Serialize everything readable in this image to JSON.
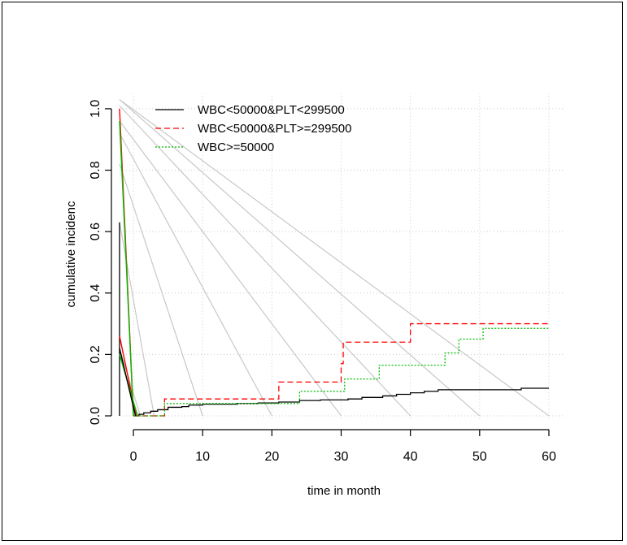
{
  "chart_data": {
    "type": "line",
    "title": "",
    "xlabel": "time in month",
    "ylabel": "cumulative incidenc",
    "xlim": [
      -2,
      62
    ],
    "ylim": [
      0,
      1.05
    ],
    "x_ticks": [
      0,
      10,
      20,
      30,
      40,
      50,
      60
    ],
    "y_ticks": [
      0.0,
      0.2,
      0.4,
      0.6,
      0.8,
      1.0
    ],
    "x_tick_labels": [
      "0",
      "10",
      "20",
      "30",
      "40",
      "50",
      "60"
    ],
    "y_tick_labels": [
      "0.0",
      "0.2",
      "0.4",
      "0.6",
      "0.8",
      "1.0"
    ],
    "grid": true,
    "legend_position": "top-left",
    "series": [
      {
        "name": "WBC<50000&PLT<299500",
        "color": "#000000",
        "dash": "solid",
        "x": [
          0,
          0.8,
          1.5,
          2.5,
          3.5,
          5,
          7,
          8,
          10,
          15,
          18,
          21,
          24,
          27,
          31,
          33,
          36,
          38,
          40,
          42,
          44,
          56,
          60
        ],
        "y": [
          0.0,
          0.005,
          0.01,
          0.015,
          0.02,
          0.028,
          0.03,
          0.035,
          0.038,
          0.04,
          0.042,
          0.045,
          0.05,
          0.052,
          0.055,
          0.06,
          0.065,
          0.07,
          0.075,
          0.08,
          0.085,
          0.09,
          0.09
        ]
      },
      {
        "name": "WBC<50000&PLT>=299500",
        "color": "#ff0000",
        "dash": "dashed",
        "x": [
          0,
          4.5,
          21,
          30,
          30.3,
          40,
          60
        ],
        "y": [
          0.0,
          0.055,
          0.11,
          0.17,
          0.24,
          0.3,
          0.3
        ]
      },
      {
        "name": "WBC>=50000",
        "color": "#00bb00",
        "dash": "dotted",
        "x": [
          0,
          4.5,
          17,
          24,
          30.5,
          35.5,
          45,
          47,
          50.5,
          60
        ],
        "y": [
          0.0,
          0.04,
          0.04,
          0.08,
          0.12,
          0.165,
          0.205,
          0.25,
          0.285,
          0.285
        ]
      }
    ],
    "intercept_lines": [
      {
        "color": "#ff0000",
        "x": [
          -2,
          0
        ],
        "y": [
          1.0,
          0.0
        ]
      },
      {
        "color": "#00bb00",
        "x": [
          -2,
          0
        ],
        "y": [
          0.96,
          0.0
        ]
      },
      {
        "color": "#ff0000",
        "x": [
          -2,
          0.4
        ],
        "y": [
          0.26,
          0.0
        ]
      },
      {
        "color": "#00bb00",
        "x": [
          -2,
          0.6
        ],
        "y": [
          0.2,
          0.0
        ]
      },
      {
        "color": "#000000",
        "x": [
          -2,
          0.3
        ],
        "y": [
          0.22,
          0.0
        ]
      }
    ],
    "reference_lines": [
      {
        "x0": -2,
        "y0": 1.03,
        "x1": 60,
        "y1": 0
      },
      {
        "x0": -2,
        "y0": 1.03,
        "x1": 50,
        "y1": 0
      },
      {
        "x0": -2,
        "y0": 1.01,
        "x1": 40,
        "y1": 0
      },
      {
        "x0": -2,
        "y0": 0.96,
        "x1": 30,
        "y1": 0
      },
      {
        "x0": -2,
        "y0": 0.92,
        "x1": 20,
        "y1": 0
      },
      {
        "x0": -2,
        "y0": 0.82,
        "x1": 10,
        "y1": 0
      },
      {
        "x0": -2,
        "y0": 0.63,
        "x1": 3,
        "y1": 0
      },
      {
        "x0": -2,
        "y0": 0.22,
        "x1": 1,
        "y1": 0
      }
    ],
    "vertical_black_line": {
      "x": -2,
      "y": [
        0.0,
        0.63
      ]
    }
  }
}
